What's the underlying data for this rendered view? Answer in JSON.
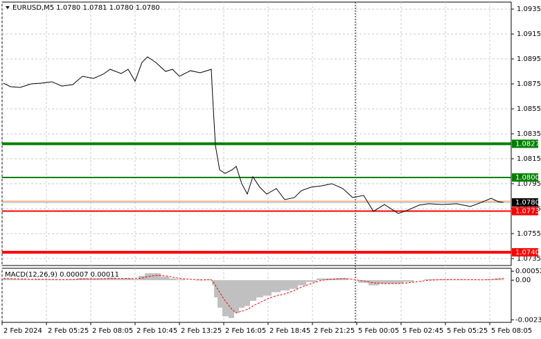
{
  "chart_data": {
    "type": "line",
    "title": "EURUSD,M5  1.0780 1.0781 1.0780 1.0780",
    "color": "#000000",
    "x": [
      1,
      6,
      13,
      21,
      28,
      36,
      43,
      51,
      58,
      66,
      73,
      78,
      86,
      91,
      96,
      101,
      105,
      111,
      118,
      123,
      128,
      136,
      143,
      151,
      152,
      154,
      157,
      161,
      166,
      169,
      173,
      177,
      181,
      186,
      191,
      198,
      204,
      211,
      216,
      223,
      231,
      238,
      246,
      253,
      261,
      268,
      276,
      286,
      293,
      301,
      308,
      318,
      328,
      338,
      346,
      353,
      358,
      362
    ],
    "values": [
      1.08756,
      1.08728,
      1.08722,
      1.0875,
      1.08756,
      1.08767,
      1.08733,
      1.08744,
      1.08811,
      1.08794,
      1.08828,
      1.08867,
      1.08833,
      1.08867,
      1.08772,
      1.08922,
      1.08967,
      1.08922,
      1.0885,
      1.08867,
      1.08811,
      1.08856,
      1.08839,
      1.08867,
      1.08644,
      1.08256,
      1.08061,
      1.08033,
      1.08061,
      1.08089,
      1.0795,
      1.07867,
      1.08006,
      1.07922,
      1.07867,
      1.07911,
      1.07822,
      1.07839,
      1.07894,
      1.07922,
      1.07933,
      1.0795,
      1.07911,
      1.07839,
      1.07856,
      1.07728,
      1.07783,
      1.07711,
      1.07739,
      1.07778,
      1.07789,
      1.07783,
      1.07789,
      1.07767,
      1.078,
      1.07833,
      1.07806,
      1.078
    ],
    "xlim": [
      0,
      367.5
    ],
    "xticks": [
      {
        "value": 0,
        "label": "2 Feb 2024"
      },
      {
        "value": 32,
        "label": "2 Feb 05:25"
      },
      {
        "value": 64,
        "label": "2 Feb 08:05"
      },
      {
        "value": 96,
        "label": "2 Feb 10:45"
      },
      {
        "value": 128,
        "label": "2 Feb 13:25"
      },
      {
        "value": 160,
        "label": "2 Feb 16:05"
      },
      {
        "value": 192,
        "label": "2 Feb 18:45"
      },
      {
        "value": 224,
        "label": "2 Feb 21:25"
      },
      {
        "value": 256,
        "label": "5 Feb 00:05"
      },
      {
        "value": 288,
        "label": "5 Feb 02:45"
      },
      {
        "value": 320,
        "label": "5 Feb 05:25"
      },
      {
        "value": 352,
        "label": "5 Feb 08:05"
      }
    ],
    "ylim": [
      1.07294,
      1.09406
    ],
    "yticks": [
      1.0935,
      1.0915,
      1.0895,
      1.0875,
      1.0855,
      1.0835,
      1.0815,
      1.0795,
      1.0775,
      1.0755,
      1.0735
    ],
    "grid": true,
    "separator_x": 255,
    "levels": [
      {
        "value": 1.0827,
        "label": "1.0827",
        "color": "#008000",
        "thick": true
      },
      {
        "value": 1.08,
        "label": "1.0800",
        "color": "#008000",
        "thick": false
      },
      {
        "value": 1.0773,
        "label": "1.0773",
        "color": "#ff0000",
        "thick": false
      },
      {
        "value": 1.074,
        "label": "1.0740",
        "color": "#ff0000",
        "thick": true
      }
    ],
    "ask": 1.0781,
    "ask_color": "#ff8c40",
    "bid": {
      "value": 1.078,
      "label": "1.0780"
    },
    "indicator": {
      "type": "macd",
      "title": "MACD(12,26,9) 0.00007 0.00011",
      "color": "#c0c0c0",
      "signal_color": "#ff0000",
      "macd": [
        0.0001,
        8e-05,
        5e-05,
        3e-05,
        5e-05,
        4e-05,
        2e-05,
        5e-05,
        0.00012,
        0.0001,
        0.0001,
        0.00015,
        0.0001,
        0.00012,
        5e-05,
        0.00025,
        0.0004,
        0.0004,
        0.0002,
        0.0001,
        5e-05,
        0,
        -2e-05,
        5e-05,
        -0.0003,
        -0.001,
        -0.0016,
        -0.0021,
        -0.0022,
        -0.0019,
        -0.0016,
        -0.0015,
        -0.0012,
        -0.001,
        -0.0009,
        -0.0007,
        -0.0006,
        -0.0005,
        -0.0003,
        -0.0001,
        0.0001,
        0.0001,
        0.00012,
        0,
        -0.00015,
        -0.0003,
        -0.0002,
        -0.0002,
        -0.0001,
        0,
        5e-05,
        5e-05,
        3e-05,
        2e-05,
        1e-05,
        5e-05,
        0.0001,
        7e-05
      ],
      "signal": [
        0.0001,
        9e-05,
        7e-05,
        5e-05,
        5e-05,
        4e-05,
        3e-05,
        4e-05,
        7e-05,
        8e-05,
        9e-05,
        0.0001,
        0.0001,
        0.0001,
        9e-05,
        0.00012,
        0.0002,
        0.00028,
        0.00025,
        0.00018,
        0.0001,
        5e-05,
        2e-05,
        2e-05,
        -5e-05,
        -0.0003,
        -0.0007,
        -0.0012,
        -0.0017,
        -0.0019,
        -0.0018,
        -0.0017,
        -0.0015,
        -0.0013,
        -0.0011,
        -0.0009,
        -0.0008,
        -0.0006,
        -0.0004,
        -0.0002,
        0,
        5e-05,
        0.0001,
        5e-05,
        -5e-05,
        -0.00015,
        -0.0002,
        -0.0002,
        -0.00015,
        -8e-05,
        0,
        3e-05,
        4e-05,
        3e-05,
        2e-05,
        3e-05,
        8e-05,
        0.00011
      ],
      "ylim": [
        -0.00245,
        0.00069
      ],
      "yticks": [
        0.00052,
        {
          "value": 0,
          "label": "0.00"
        },
        -0.0023
      ]
    }
  }
}
